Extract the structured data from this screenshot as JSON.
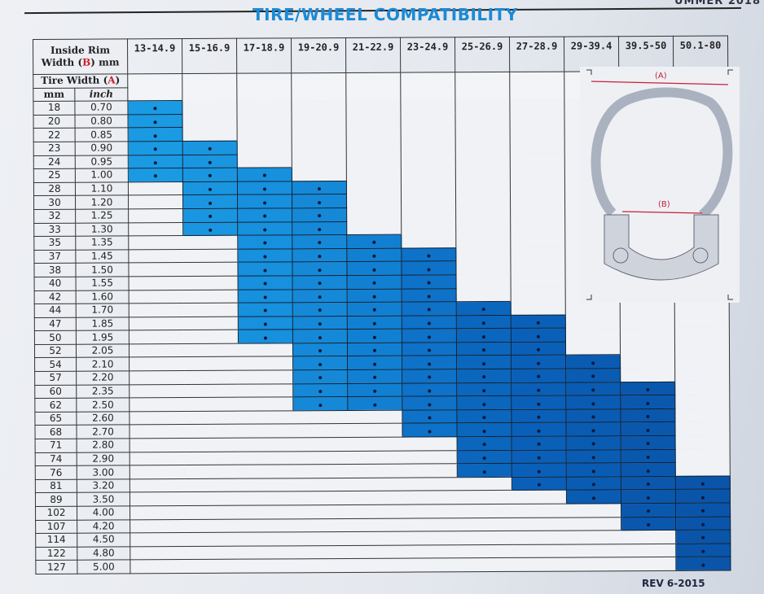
{
  "header": {
    "title": "TIRE/WHEEL COMPATIBILITY",
    "corner_text": "UMMER 2018"
  },
  "labels": {
    "rim_line1": "Inside Rim",
    "rim_line2_pre": "Width (",
    "rim_b": "B",
    "rim_line2_post": ") mm",
    "tire_pre": "Tire Width (",
    "tire_a": "A",
    "tire_post": ")",
    "mm": "mm",
    "inch": "inch"
  },
  "columns": [
    {
      "label": "13-14.9",
      "min_mm": 18,
      "max_mm": 25,
      "color": "#1a9ae2"
    },
    {
      "label": "15-16.9",
      "min_mm": 23,
      "max_mm": 33,
      "color": "#1a96e0"
    },
    {
      "label": "17-18.9",
      "min_mm": 25,
      "max_mm": 50,
      "color": "#1790de"
    },
    {
      "label": "19-20.9",
      "min_mm": 28,
      "max_mm": 62,
      "color": "#1589d8"
    },
    {
      "label": "21-22.9",
      "min_mm": 35,
      "max_mm": 62,
      "color": "#1280d2"
    },
    {
      "label": "23-24.9",
      "min_mm": 37,
      "max_mm": 68,
      "color": "#0e72c8"
    },
    {
      "label": "25-26.9",
      "min_mm": 44,
      "max_mm": 76,
      "color": "#0b66bd"
    },
    {
      "label": "27-28.9",
      "min_mm": 47,
      "max_mm": 81,
      "color": "#0a60b8"
    },
    {
      "label": "29-39.4",
      "min_mm": 54,
      "max_mm": 89,
      "color": "#0a5cb3"
    },
    {
      "label": "39.5-50",
      "min_mm": 60,
      "max_mm": 107,
      "color": "#0a58ae"
    },
    {
      "label": "50.1-80",
      "min_mm": 81,
      "max_mm": 127,
      "color": "#0a55aa"
    }
  ],
  "rows": [
    [
      "18",
      "0.70"
    ],
    [
      "20",
      "0.80"
    ],
    [
      "22",
      "0.85"
    ],
    [
      "23",
      "0.90"
    ],
    [
      "24",
      "0.95"
    ],
    [
      "25",
      "1.00"
    ],
    [
      "28",
      "1.10"
    ],
    [
      "30",
      "1.20"
    ],
    [
      "32",
      "1.25"
    ],
    [
      "33",
      "1.30"
    ],
    [
      "35",
      "1.35"
    ],
    [
      "37",
      "1.45"
    ],
    [
      "38",
      "1.50"
    ],
    [
      "40",
      "1.55"
    ],
    [
      "42",
      "1.60"
    ],
    [
      "44",
      "1.70"
    ],
    [
      "47",
      "1.85"
    ],
    [
      "50",
      "1.95"
    ],
    [
      "52",
      "2.05"
    ],
    [
      "54",
      "2.10"
    ],
    [
      "57",
      "2.20"
    ],
    [
      "60",
      "2.35"
    ],
    [
      "62",
      "2.50"
    ],
    [
      "65",
      "2.60"
    ],
    [
      "68",
      "2.70"
    ],
    [
      "71",
      "2.80"
    ],
    [
      "74",
      "2.90"
    ],
    [
      "76",
      "3.00"
    ],
    [
      "81",
      "3.20"
    ],
    [
      "89",
      "3.50"
    ],
    [
      "102",
      "4.00"
    ],
    [
      "107",
      "4.20"
    ],
    [
      "114",
      "4.50"
    ],
    [
      "122",
      "4.80"
    ],
    [
      "127",
      "5.00"
    ]
  ],
  "diagram": {
    "label_a": "(A)",
    "label_b": "(B)",
    "accent": "#c8203a"
  },
  "footer": {
    "revision": "REV 6-2015"
  }
}
